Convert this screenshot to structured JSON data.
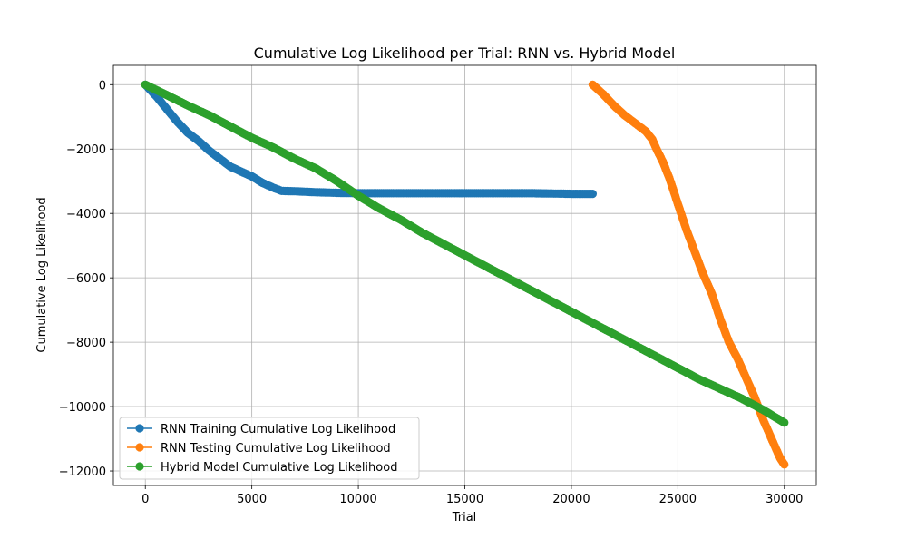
{
  "chart_data": {
    "type": "line",
    "title": "Cumulative Log Likelihood per Trial: RNN vs. Hybrid Model",
    "xlabel": "Trial",
    "ylabel": "Cumulative Log Likelihood",
    "xlim": [
      -1500,
      31500
    ],
    "ylim": [
      -12450,
      600
    ],
    "xticks": [
      0,
      5000,
      10000,
      15000,
      20000,
      25000,
      30000
    ],
    "xtick_labels": [
      "0",
      "5000",
      "10000",
      "15000",
      "20000",
      "25000",
      "30000"
    ],
    "yticks": [
      0,
      -2000,
      -4000,
      -6000,
      -8000,
      -10000,
      -12000
    ],
    "ytick_labels": [
      "0",
      "−2000",
      "−4000",
      "−6000",
      "−8000",
      "−10000",
      "−12000"
    ],
    "grid": true,
    "legend_position": "lower-left",
    "series": [
      {
        "name": "RNN Training Cumulative Log Likelihood",
        "color": "#1f77b4",
        "marker": "circle",
        "x": [
          0,
          500,
          1000,
          1500,
          2000,
          2500,
          3000,
          3500,
          4000,
          4500,
          5000,
          5500,
          6000,
          6400,
          7000,
          8000,
          9000,
          10000,
          12000,
          14000,
          16000,
          18000,
          19000,
          20000,
          21000
        ],
        "y": [
          0,
          -350,
          -750,
          -1150,
          -1500,
          -1750,
          -2050,
          -2300,
          -2550,
          -2700,
          -2850,
          -3050,
          -3200,
          -3300,
          -3310,
          -3340,
          -3360,
          -3370,
          -3370,
          -3370,
          -3370,
          -3370,
          -3380,
          -3390,
          -3390
        ]
      },
      {
        "name": "RNN Testing Cumulative Log Likelihood",
        "color": "#ff7f0e",
        "marker": "circle",
        "x": [
          21000,
          21500,
          22000,
          22500,
          23000,
          23500,
          23800,
          24000,
          24300,
          24600,
          25000,
          25400,
          25800,
          26200,
          26600,
          27000,
          27400,
          27800,
          28200,
          28600,
          29000,
          29400,
          29800,
          30000
        ],
        "y": [
          0,
          -300,
          -650,
          -950,
          -1200,
          -1450,
          -1700,
          -2000,
          -2400,
          -2900,
          -3700,
          -4500,
          -5200,
          -5900,
          -6500,
          -7300,
          -8000,
          -8500,
          -9100,
          -9700,
          -10400,
          -11000,
          -11600,
          -11800
        ]
      },
      {
        "name": "Hybrid Model Cumulative Log Likelihood",
        "color": "#2ca02c",
        "marker": "circle",
        "x": [
          0,
          1000,
          2000,
          3000,
          4000,
          5000,
          6000,
          7000,
          8000,
          9000,
          10000,
          11000,
          12000,
          13000,
          14000,
          15000,
          16000,
          17000,
          18000,
          19000,
          20000,
          21000,
          22000,
          23000,
          24000,
          25000,
          26000,
          27000,
          28000,
          29000,
          30000
        ],
        "y": [
          0,
          -320,
          -650,
          -950,
          -1300,
          -1650,
          -1950,
          -2300,
          -2600,
          -3000,
          -3450,
          -3850,
          -4200,
          -4600,
          -4950,
          -5300,
          -5650,
          -6000,
          -6350,
          -6700,
          -7050,
          -7400,
          -7750,
          -8100,
          -8450,
          -8800,
          -9150,
          -9450,
          -9750,
          -10100,
          -10500
        ]
      }
    ]
  }
}
